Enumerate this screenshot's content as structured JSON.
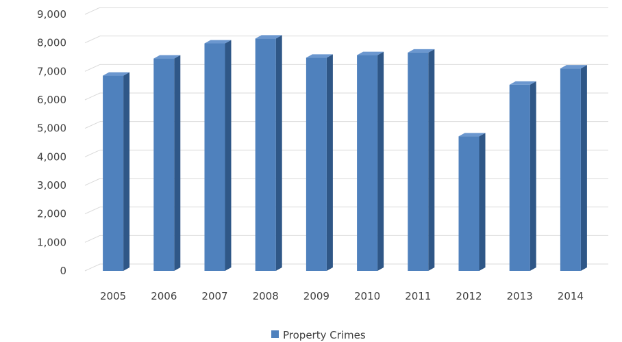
{
  "chart_data": {
    "type": "bar",
    "style": "3d-clustered-column",
    "categories": [
      "2005",
      "2006",
      "2007",
      "2008",
      "2009",
      "2010",
      "2011",
      "2012",
      "2013",
      "2014"
    ],
    "series": [
      {
        "name": "Property Crimes",
        "values": [
          6850,
          7450,
          7980,
          8150,
          7480,
          7570,
          7660,
          4720,
          6530,
          7100
        ],
        "color": "#4f81bd"
      }
    ],
    "y_ticks": [
      "0",
      "1,000",
      "2,000",
      "3,000",
      "4,000",
      "5,000",
      "6,000",
      "7,000",
      "8,000",
      "9,000"
    ],
    "ylim": [
      0,
      9000
    ],
    "grid": true,
    "legend_position": "bottom",
    "title": "",
    "xlabel": "",
    "ylabel": ""
  },
  "colors": {
    "bar_front": "#4f81bd",
    "bar_side": "#2f5787",
    "bar_top": "#6b97cf",
    "gridline": "#d9d9d9",
    "text": "#404040"
  }
}
